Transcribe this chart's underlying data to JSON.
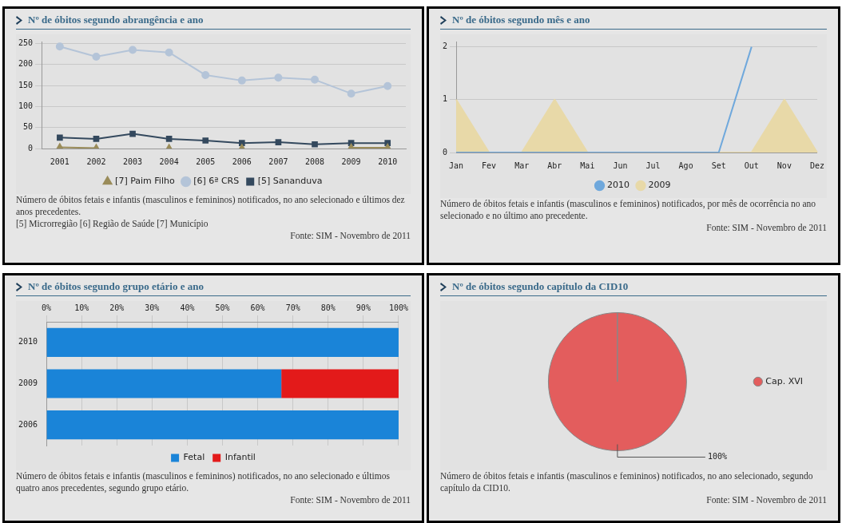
{
  "chart_data": [
    {
      "type": "line",
      "title": "Nº de óbitos segundo abrangência e ano",
      "categories": [
        "2001",
        "2002",
        "2003",
        "2004",
        "2005",
        "2006",
        "2007",
        "2008",
        "2009",
        "2010"
      ],
      "series": [
        {
          "name": "[5] Sananduva",
          "color": "#34495e",
          "marker": "square",
          "values": [
            26,
            23,
            35,
            23,
            19,
            13,
            15,
            10,
            13,
            13
          ]
        },
        {
          "name": "[6] 6ª CRS",
          "color": "#b4c4d8",
          "marker": "circle",
          "values": [
            243,
            219,
            235,
            229,
            175,
            162,
            169,
            164,
            131,
            149
          ]
        },
        {
          "name": "[7] Paim Filho",
          "color": "#9a8c5a",
          "marker": "triangle",
          "values": [
            3,
            1,
            null,
            1,
            null,
            1,
            null,
            null,
            2,
            2
          ]
        }
      ],
      "ylim": [
        0,
        255
      ],
      "yticks": [
        0,
        50,
        100,
        150,
        200,
        250
      ],
      "grid": "y",
      "legend": "bottom",
      "annotations": [
        "Número de óbitos fetais e infantis (masculinos e femininos) notificados, no ano selecionado e últimos dez anos precedentes.",
        "[5] Microrregião [6] Região de Saúde [7] Município",
        "Fonte: SIM - Novembro de 2011"
      ]
    },
    {
      "type": "line",
      "title": "Nº de óbitos segundo mês e ano",
      "categories": [
        "Jan",
        "Fev",
        "Mar",
        "Abr",
        "Mai",
        "Jun",
        "Jul",
        "Ago",
        "Set",
        "Out",
        "Nov",
        "Dez"
      ],
      "series": [
        {
          "name": "2009",
          "type": "area",
          "color": "#e8d9a8",
          "values": [
            1,
            0,
            0,
            1,
            0,
            0,
            0,
            0,
            0,
            0,
            1,
            0
          ]
        },
        {
          "name": "2010",
          "type": "line",
          "color": "#6fa8dc",
          "values": [
            0,
            0,
            0,
            0,
            0,
            0,
            0,
            0,
            0,
            2,
            null,
            null
          ]
        }
      ],
      "marker": "none",
      "ylim": [
        0,
        2.1
      ],
      "yticks": [
        0,
        1,
        2
      ],
      "grid": "y",
      "legend": "bottom",
      "annotations": [
        "Número de óbitos fetais e infantis (masculinos e femininos) notificados, por mês de ocorrência no ano selecionado e no último ano precedente.",
        "Fonte: SIM - Novembro de 2011"
      ]
    },
    {
      "type": "bar",
      "title": "Nº de óbitos segundo grupo etário e ano",
      "orientation": "horizontal",
      "stacked": true,
      "categories": [
        "2010",
        "2009",
        "2006"
      ],
      "series": [
        {
          "name": "Fetal",
          "color": "#1a84d8",
          "values": [
            100,
            66.7,
            100
          ]
        },
        {
          "name": "Infantil",
          "color": "#e31a1a",
          "values": [
            0,
            33.3,
            0
          ]
        }
      ],
      "xlim": [
        0,
        100
      ],
      "xticks": [
        {
          "value": 0,
          "label": "0%"
        },
        {
          "value": 10,
          "label": "10%"
        },
        {
          "value": 20,
          "label": "20%"
        },
        {
          "value": 30,
          "label": "30%"
        },
        {
          "value": 40,
          "label": "40%"
        },
        {
          "value": 50,
          "label": "50%"
        },
        {
          "value": 60,
          "label": "60%"
        },
        {
          "value": 70,
          "label": "70%"
        },
        {
          "value": 80,
          "label": "80%"
        },
        {
          "value": 90,
          "label": "90%"
        },
        {
          "value": 100,
          "label": "100%"
        }
      ],
      "grid": "x",
      "legend": "bottom",
      "annotations": [
        "Número de óbitos fetais e infantis (masculinos e femininos) notificados, no ano selecionado e últimos quatro anos precedentes, segundo grupo etário.",
        "Fonte: SIM - Novembro de 2011"
      ]
    },
    {
      "type": "pie",
      "title": "Nº de óbitos segundo capítulo da CID10",
      "categories": [
        "Cap. XVI"
      ],
      "values": [
        100
      ],
      "colors": [
        "#e35d5d"
      ],
      "value_labels": [
        "100%"
      ],
      "legend": "right",
      "annotations": [
        "Número de óbitos fetais e infantis (masculinos e femininos) notificados, no ano selecionado, segundo capítulo da CID10.",
        "Fonte: SIM - Novembro de 2011"
      ]
    }
  ]
}
